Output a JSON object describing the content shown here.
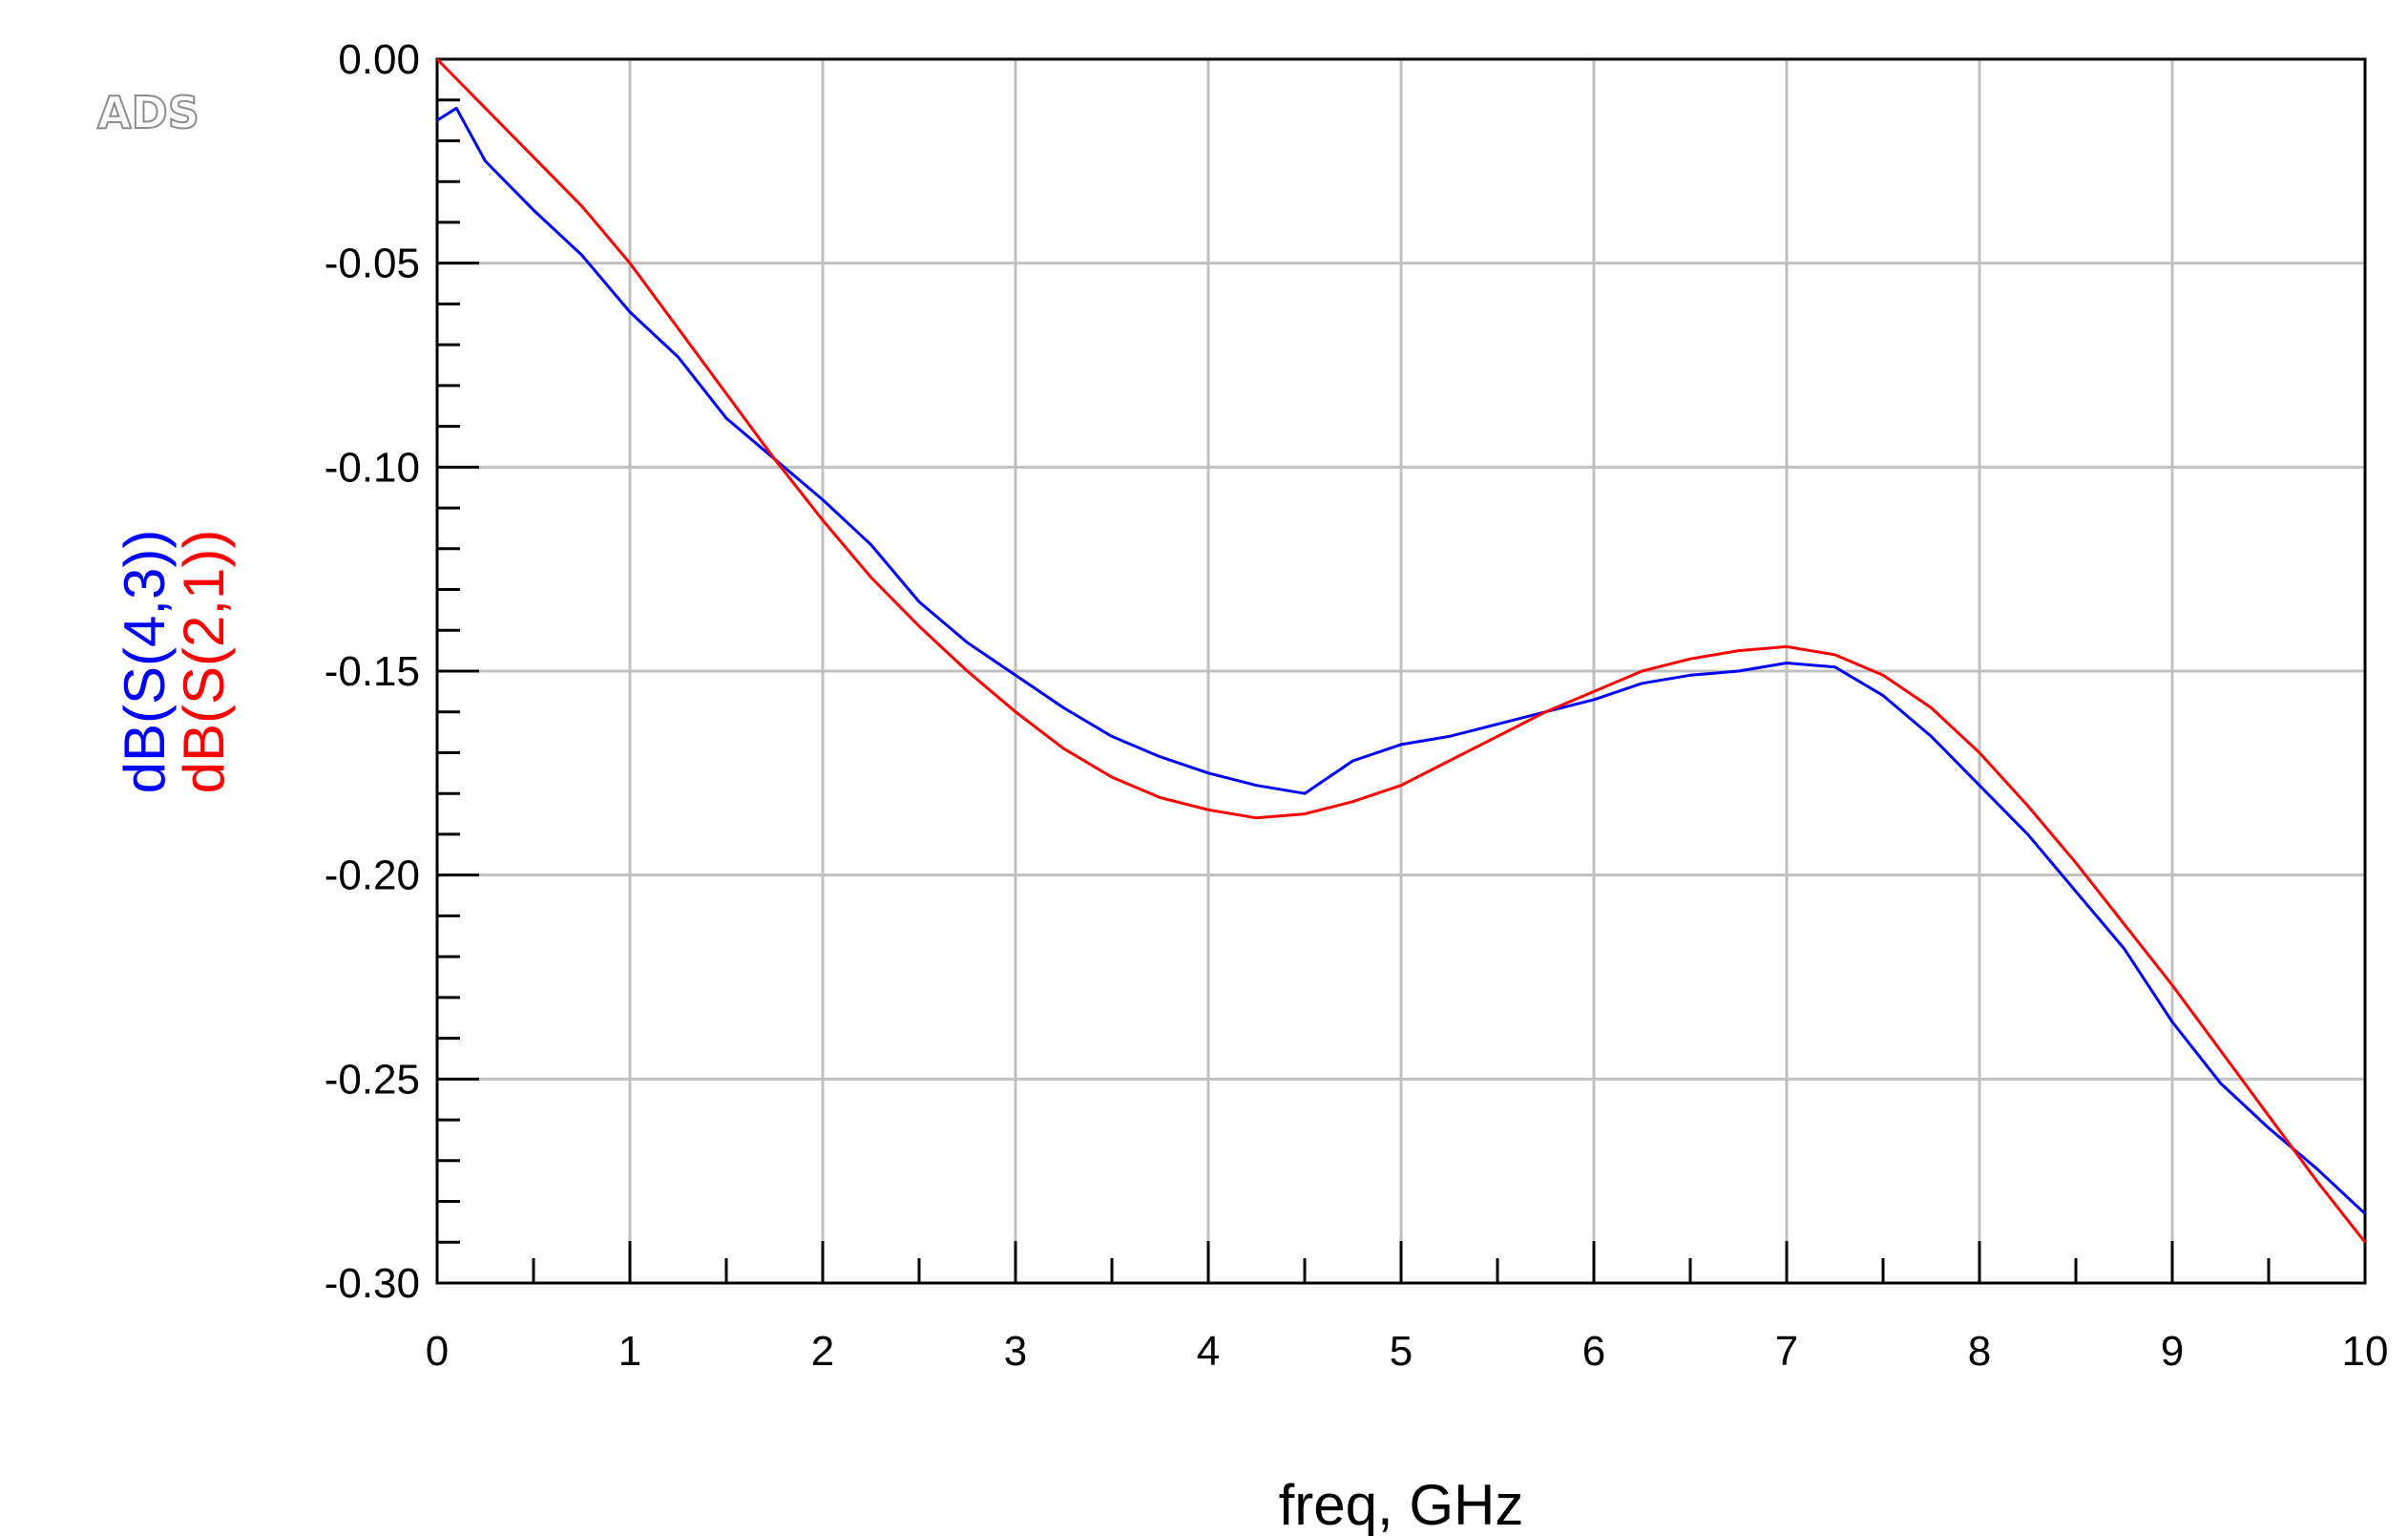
{
  "logo_text": "ADS",
  "chart_data": {
    "type": "line",
    "xlabel": "freq, GHz",
    "ylabel_parts": [
      {
        "text": "dB(S(4,3))",
        "color": "#0000ff"
      },
      {
        "text": "dB(S(2,1))",
        "color": "#ff0000"
      }
    ],
    "xlim": [
      0,
      10
    ],
    "ylim": [
      -0.3,
      0.0
    ],
    "x_ticks": [
      0,
      1,
      2,
      3,
      4,
      5,
      6,
      7,
      8,
      9,
      10
    ],
    "y_ticks": [
      0.0,
      -0.05,
      -0.1,
      -0.15,
      -0.2,
      -0.25,
      -0.3
    ],
    "x_tick_labels": [
      "0",
      "1",
      "2",
      "3",
      "4",
      "5",
      "6",
      "7",
      "8",
      "9",
      "10"
    ],
    "y_tick_labels": [
      "0.00",
      "-0.05",
      "-0.10",
      "-0.15",
      "-0.20",
      "-0.25",
      "-0.30"
    ],
    "grid": true,
    "series": [
      {
        "name": "dB(S(4,3))",
        "color": "#0000ff",
        "x": [
          0.0,
          0.1,
          0.25,
          0.5,
          0.75,
          1.0,
          1.25,
          1.5,
          1.75,
          2.0,
          2.25,
          2.5,
          2.75,
          3.0,
          3.25,
          3.5,
          3.75,
          4.0,
          4.25,
          4.5,
          4.75,
          5.0,
          5.25,
          5.5,
          5.75,
          6.0,
          6.25,
          6.5,
          6.75,
          7.0,
          7.25,
          7.5,
          7.75,
          8.0,
          8.25,
          8.5,
          8.75,
          9.0,
          9.25,
          9.5,
          9.75,
          10.0
        ],
        "y": [
          -0.015,
          -0.012,
          -0.025,
          -0.037,
          -0.048,
          -0.062,
          -0.073,
          -0.088,
          -0.098,
          -0.108,
          -0.119,
          -0.133,
          -0.143,
          -0.151,
          -0.159,
          -0.166,
          -0.171,
          -0.175,
          -0.178,
          -0.18,
          -0.172,
          -0.168,
          -0.166,
          -0.163,
          -0.16,
          -0.157,
          -0.153,
          -0.151,
          -0.15,
          -0.148,
          -0.149,
          -0.156,
          -0.166,
          -0.178,
          -0.19,
          -0.204,
          -0.218,
          -0.236,
          -0.251,
          -0.262,
          -0.272,
          -0.283
        ]
      },
      {
        "name": "dB(S(2,1))",
        "color": "#ff0000",
        "x": [
          0.0,
          0.25,
          0.5,
          0.75,
          1.0,
          1.25,
          1.5,
          1.75,
          2.0,
          2.25,
          2.5,
          2.75,
          3.0,
          3.25,
          3.5,
          3.75,
          4.0,
          4.25,
          4.5,
          4.75,
          5.0,
          5.25,
          5.5,
          5.75,
          6.0,
          6.25,
          6.5,
          6.75,
          7.0,
          7.25,
          7.5,
          7.75,
          8.0,
          8.25,
          8.5,
          8.75,
          9.0,
          9.25,
          9.5,
          9.75,
          10.0
        ],
        "y": [
          0.0,
          -0.012,
          -0.024,
          -0.036,
          -0.05,
          -0.066,
          -0.082,
          -0.098,
          -0.113,
          -0.127,
          -0.139,
          -0.15,
          -0.16,
          -0.169,
          -0.176,
          -0.181,
          -0.184,
          -0.186,
          -0.185,
          -0.182,
          -0.178,
          -0.172,
          -0.166,
          -0.16,
          -0.155,
          -0.15,
          -0.147,
          -0.145,
          -0.144,
          -0.146,
          -0.151,
          -0.159,
          -0.17,
          -0.183,
          -0.197,
          -0.212,
          -0.227,
          -0.243,
          -0.259,
          -0.275,
          -0.29
        ]
      }
    ]
  }
}
